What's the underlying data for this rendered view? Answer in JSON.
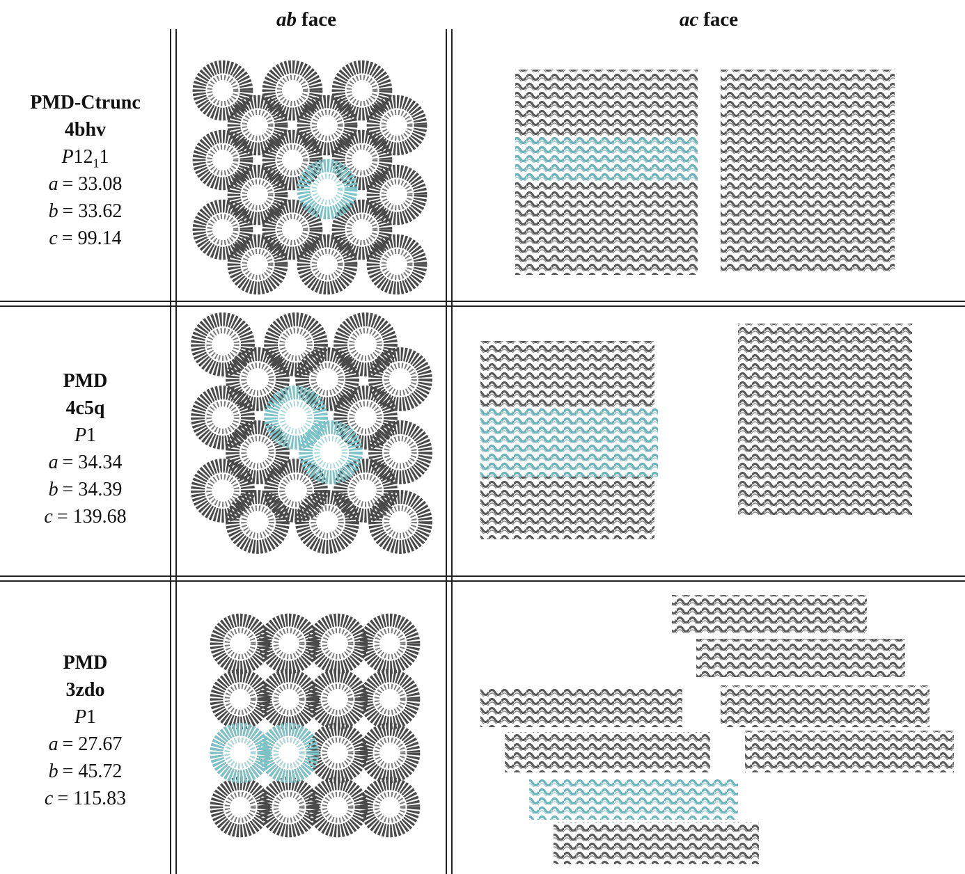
{
  "header": {
    "columns": [
      {
        "italic": "ab",
        "text": "face"
      },
      {
        "italic": "ac",
        "text": "face"
      }
    ]
  },
  "rows": [
    {
      "name": "PMD-Ctrunc",
      "pdb_id": "4bhv",
      "space_group": {
        "symbol": "P",
        "number": "12",
        "subscript": "1",
        "suffix": "1"
      },
      "cell": [
        {
          "axis": "a",
          "text": "= 33.08"
        },
        {
          "axis": "b",
          "text": "= 33.62"
        },
        {
          "axis": "c",
          "text": "= 99.14"
        }
      ]
    },
    {
      "name": "PMD",
      "pdb_id": "4c5q",
      "space_group": {
        "symbol": "P",
        "number": "1"
      },
      "cell": [
        {
          "axis": "a",
          "text": "= 34.34"
        },
        {
          "axis": "b",
          "text": "= 34.39"
        },
        {
          "axis": "c",
          "text": "= 139.68"
        }
      ]
    },
    {
      "name": "PMD",
      "pdb_id": "3zdo",
      "space_group": {
        "symbol": "P",
        "number": "1"
      },
      "cell": [
        {
          "axis": "a",
          "text": "= 27.67"
        },
        {
          "axis": "b",
          "text": "= 45.72"
        },
        {
          "axis": "c",
          "text": "= 115.83"
        }
      ]
    }
  ]
}
